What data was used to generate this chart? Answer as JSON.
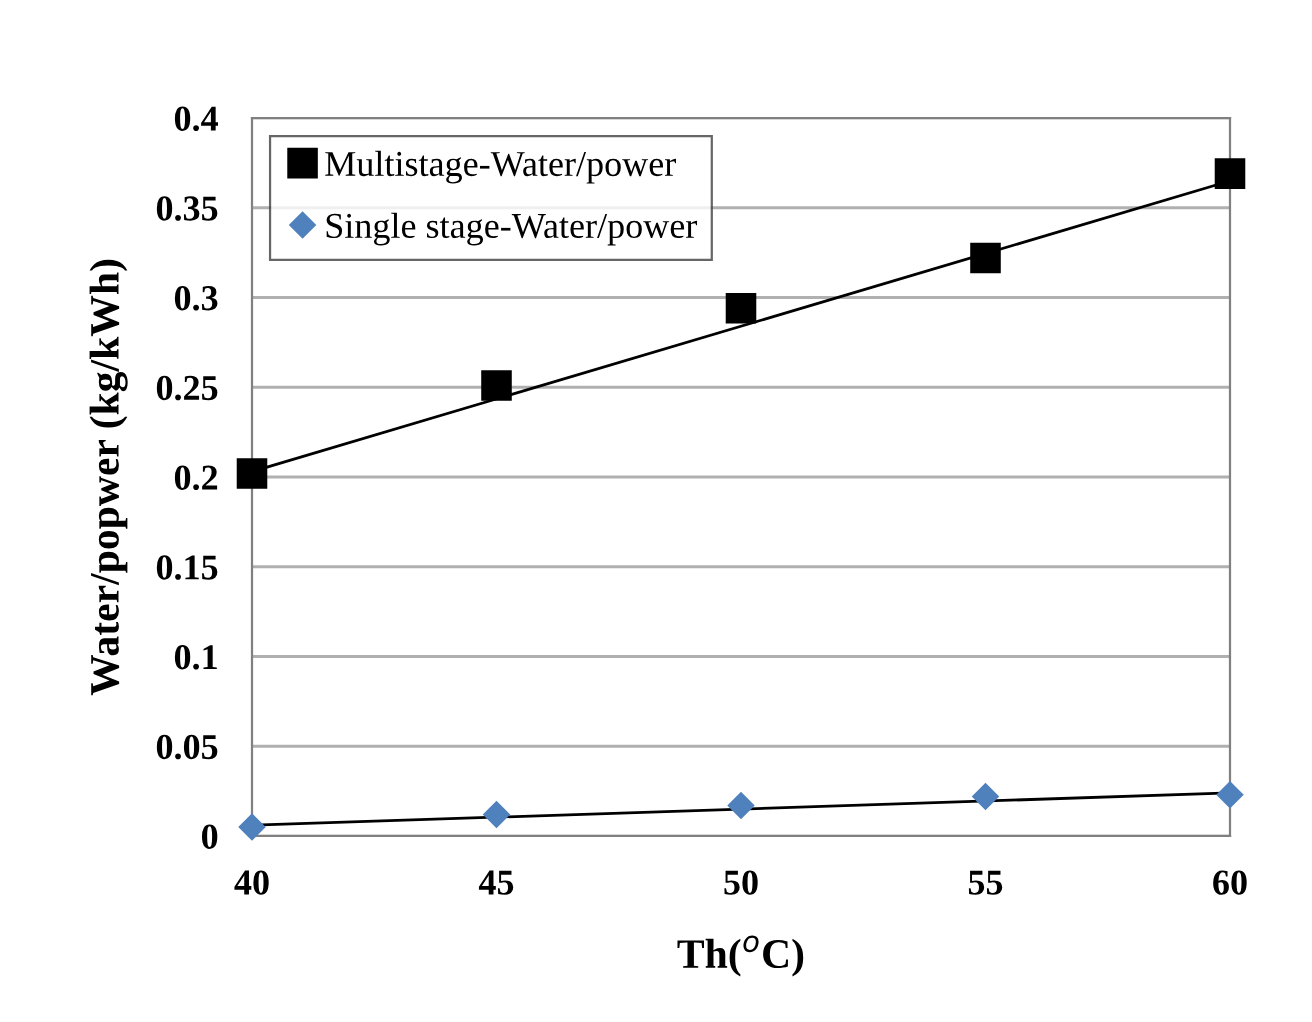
{
  "chart_data": {
    "type": "scatter",
    "xlabel": "Th($^{o}$C)",
    "ylabel": "Water/popwer (kg/kWh)",
    "xlim": [
      40,
      60
    ],
    "xticks": [
      40,
      45,
      50,
      55,
      60
    ],
    "ylim": [
      0,
      0.4
    ],
    "yticks": [
      0,
      0.05,
      0.1,
      0.15,
      0.2,
      0.25,
      0.3,
      0.35,
      0.4
    ],
    "grid": "y",
    "legend": "top left",
    "series": [
      {
        "name": "Multistage-Water/power",
        "color": "#000000",
        "marker": "square",
        "x": [
          40,
          45,
          50,
          55,
          60
        ],
        "values": [
          0.202,
          0.251,
          0.294,
          0.322,
          0.369
        ]
      },
      {
        "name": "Single stage-Water/power",
        "color": "#4f81bd",
        "marker": "diamond",
        "x": [
          40,
          45,
          50,
          55,
          60
        ],
        "values": [
          0.005,
          0.012,
          0.017,
          0.022,
          0.023
        ]
      },
      {
        "type": "line",
        "color": "#000000",
        "x": [
          40,
          60
        ],
        "values": [
          0.203,
          0.365
        ]
      },
      {
        "type": "line",
        "color": "#000000",
        "x": [
          40,
          60
        ],
        "values": [
          0.006,
          0.024
        ]
      }
    ]
  }
}
